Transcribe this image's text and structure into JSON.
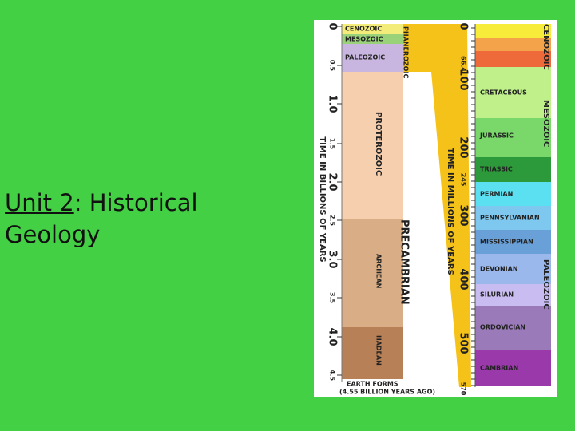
{
  "title": {
    "underlined": "Unit 2",
    "rest": ": Historical Geology"
  },
  "left_scale": {
    "axis_label": "TIME IN BILLIONS OF YEARS",
    "ticks": [
      "0",
      "0.5",
      "1.0",
      "1.5",
      "2.0",
      "2.5",
      "3.0",
      "3.5",
      "4.0",
      "4.5"
    ]
  },
  "eras_left": [
    "CENOZOIC",
    "MESOZOIC",
    "PALEOZOIC"
  ],
  "eons": [
    "PHANEROZOIC",
    "PROTEROZOIC",
    "ARCHEAN",
    "HADEAN",
    "PRECAMBRIAN"
  ],
  "earth_forms": {
    "label": "EARTH FORMS",
    "note": "(4.55 BILLION YEARS AGO)"
  },
  "right_scale": {
    "axis_label": "TIME IN MILLIONS OF YEARS",
    "ticks": [
      "0",
      "66.4",
      "100",
      "200",
      "245",
      "300",
      "400",
      "500",
      "570"
    ]
  },
  "periods": [
    "CRETACEOUS",
    "JURASSIC",
    "TRIASSIC",
    "PERMIAN",
    "PENNSYLVANIAN",
    "MISSISSIPPIAN",
    "DEVONIAN",
    "SILURIAN",
    "ORDOVICIAN",
    "CAMBRIAN"
  ],
  "eras_right": [
    "CENOZOIC",
    "MESOZOIC",
    "PALEOZOIC"
  ]
}
